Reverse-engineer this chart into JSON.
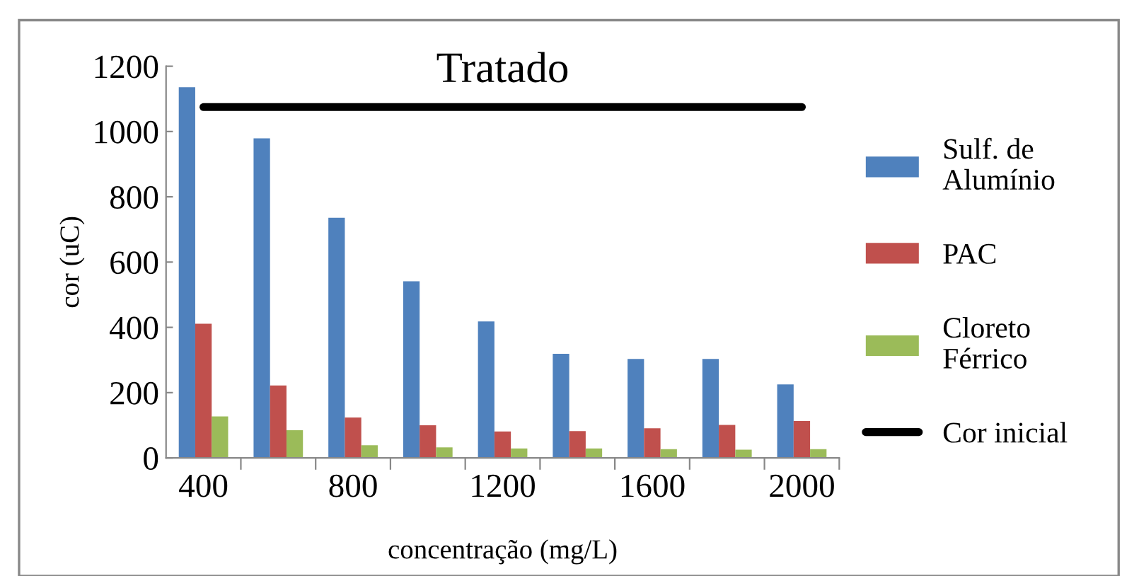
{
  "chart_data": {
    "type": "bar",
    "title": "Tratado",
    "xlabel": "concentração (mg/L)",
    "ylabel": "cor (uC)",
    "categories": [
      "400",
      null,
      "800",
      null,
      "1200",
      null,
      "1600",
      null,
      "2000"
    ],
    "series": [
      {
        "name": "Sulf. de\nAlumínio",
        "color": "#4f81bd",
        "values": [
          1136,
          979,
          736,
          541,
          418,
          319,
          303,
          303,
          225
        ]
      },
      {
        "name": "PAC",
        "color": "#c0504d",
        "values": [
          411,
          222,
          124,
          100,
          81,
          82,
          91,
          101,
          113
        ]
      },
      {
        "name": "Cloreto\nFérrico",
        "color": "#9bbb59",
        "values": [
          127,
          85,
          39,
          32,
          29,
          29,
          27,
          25,
          27
        ]
      },
      {
        "name": "Cor inicial",
        "color": "#000000",
        "type": "line",
        "values": [
          1075,
          1075,
          1075,
          1075,
          1075,
          1075,
          1075,
          1075,
          1075
        ]
      }
    ],
    "ylim": [
      0,
      1200
    ],
    "yticks": [
      0,
      200,
      400,
      600,
      800,
      1000,
      1200
    ],
    "grid": false,
    "legend": "right"
  }
}
